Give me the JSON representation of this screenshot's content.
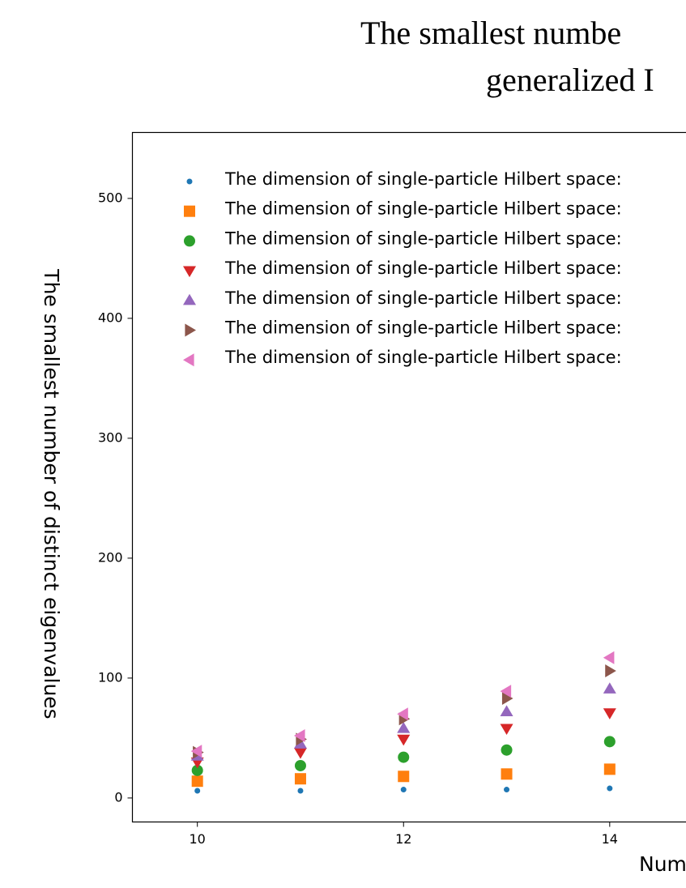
{
  "chart_data": {
    "type": "scatter",
    "title_lines": [
      "The smallest numbe",
      "generalized I"
    ],
    "ylabel": "The smallest number of distinct eigenvalues",
    "xlabel": "Num",
    "x": [
      10,
      11,
      12,
      13,
      14
    ],
    "xlim": [
      9.37,
      14.74
    ],
    "xticks": [
      10,
      12,
      14
    ],
    "ylim": [
      -20,
      555
    ],
    "yticks": [
      0,
      100,
      200,
      300,
      400,
      500
    ],
    "grid": false,
    "legend": "upper left",
    "series": [
      {
        "name": "The dimension of single-particle Hilbert space:",
        "color": "#1f77b4",
        "marker": "dot",
        "values": [
          6,
          6,
          7,
          7,
          8
        ]
      },
      {
        "name": "The dimension of single-particle Hilbert space:",
        "color": "#ff7f0e",
        "marker": "square",
        "values": [
          14,
          16,
          18,
          20,
          24
        ]
      },
      {
        "name": "The dimension of single-particle Hilbert space:",
        "color": "#2ca02c",
        "marker": "circle",
        "values": [
          23,
          27,
          34,
          40,
          47
        ]
      },
      {
        "name": "The dimension of single-particle Hilbert space:",
        "color": "#d62728",
        "marker": "triangle-down",
        "values": [
          30,
          38,
          49,
          58,
          71
        ]
      },
      {
        "name": "The dimension of single-particle Hilbert space:",
        "color": "#9467bd",
        "marker": "triangle-up",
        "values": [
          35,
          45,
          58,
          72,
          91
        ]
      },
      {
        "name": "The dimension of single-particle Hilbert space:",
        "color": "#8c564b",
        "marker": "triangle-right",
        "values": [
          38,
          49,
          66,
          83,
          106
        ]
      },
      {
        "name": "The dimension of single-particle Hilbert space:",
        "color": "#e377c2",
        "marker": "triangle-left",
        "values": [
          39,
          52,
          70,
          89,
          117
        ]
      }
    ]
  }
}
